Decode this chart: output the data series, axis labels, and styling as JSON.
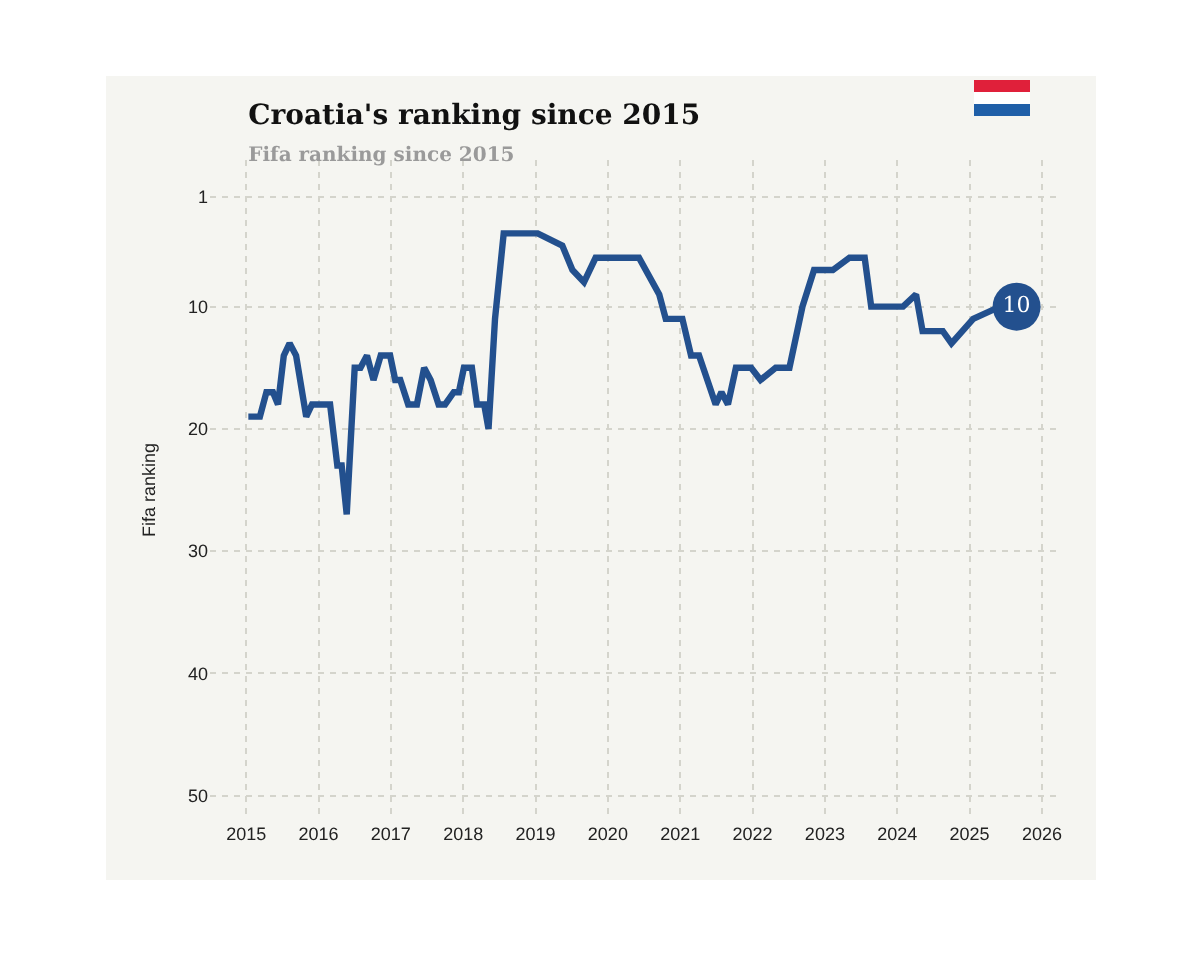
{
  "chart_data": {
    "type": "line",
    "title": "Croatia's ranking since 2015",
    "subtitle": "Fifa ranking since 2015",
    "ylabel": "Fifa ranking",
    "xlim": [
      2014.5,
      2026.25
    ],
    "xticks": [
      2015,
      2016,
      2017,
      2018,
      2019,
      2020,
      2021,
      2022,
      2023,
      2024,
      2025,
      2026
    ],
    "ylim": [
      52,
      -2
    ],
    "yticks": [
      1,
      10,
      20,
      30,
      40,
      50
    ],
    "grid": true,
    "marker": "none",
    "line_style": "solid",
    "series": [
      {
        "color": "#23508e",
        "x": [
          2015.03,
          2015.19,
          2015.28,
          2015.37,
          2015.44,
          2015.52,
          2015.6,
          2015.69,
          2015.83,
          2015.91,
          2016.16,
          2016.26,
          2016.32,
          2016.39,
          2016.5,
          2016.58,
          2016.67,
          2016.76,
          2016.86,
          2016.99,
          2017.06,
          2017.13,
          2017.24,
          2017.36,
          2017.46,
          2017.55,
          2017.66,
          2017.75,
          2017.87,
          2017.94,
          2018.01,
          2018.12,
          2018.19,
          2018.29,
          2018.35,
          2018.44,
          2018.56,
          2019.03,
          2019.37,
          2019.51,
          2019.67,
          2019.83,
          2020.43,
          2020.71,
          2020.8,
          2021.03,
          2021.15,
          2021.26,
          2021.49,
          2021.57,
          2021.66,
          2021.77,
          2021.98,
          2022.11,
          2022.32,
          2022.51,
          2022.69,
          2022.85,
          2023.11,
          2023.34,
          2023.55,
          2023.64,
          2024.08,
          2024.26,
          2024.35,
          2024.63,
          2024.75,
          2025.05,
          2025.42,
          2025.65
        ],
        "values": [
          19,
          19,
          17,
          17,
          18,
          14,
          13,
          14,
          19,
          18,
          18,
          23,
          23,
          27,
          15,
          15,
          14,
          16,
          14,
          14,
          16,
          16,
          18,
          18,
          15,
          16,
          18,
          18,
          17,
          17,
          15,
          15,
          18,
          18,
          20,
          11,
          4,
          4,
          5,
          7,
          8,
          6,
          6,
          9,
          11,
          11,
          14,
          14,
          18,
          17,
          18,
          15,
          15,
          16,
          15,
          15,
          10,
          7,
          7,
          6,
          6,
          10,
          10,
          9,
          12,
          12,
          13,
          11,
          10,
          10
        ],
        "value_labels": [
          null,
          null,
          null,
          null,
          null,
          null,
          null,
          null,
          null,
          null,
          null,
          null,
          null,
          null,
          null,
          null,
          null,
          null,
          null,
          null,
          null,
          null,
          null,
          null,
          null,
          null,
          null,
          null,
          null,
          null,
          null,
          null,
          null,
          null,
          null,
          null,
          null,
          null,
          null,
          null,
          null,
          null,
          null,
          null,
          null,
          null,
          null,
          null,
          null,
          null,
          null,
          null,
          null,
          null,
          null,
          null,
          null,
          null,
          null,
          null,
          null,
          null,
          null,
          null,
          null,
          null,
          null,
          null,
          null,
          "10"
        ]
      }
    ]
  }
}
